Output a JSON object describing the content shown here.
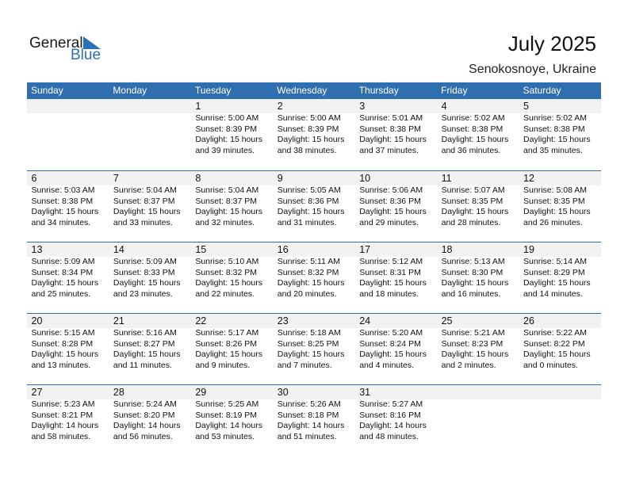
{
  "logo": {
    "general": "General",
    "blue": "Blue"
  },
  "title": "July 2025",
  "location": "Senokosnoye, Ukraine",
  "colors": {
    "header": "#2f6fb0",
    "date_band": "#f2f2f2",
    "brand_blue": "#2b71b8"
  },
  "weekdays": [
    "Sunday",
    "Monday",
    "Tuesday",
    "Wednesday",
    "Thursday",
    "Friday",
    "Saturday"
  ],
  "weeks": [
    [
      null,
      null,
      {
        "day": "1",
        "sunrise": "Sunrise: 5:00 AM",
        "sunset": "Sunset: 8:39 PM",
        "daylight": "Daylight: 15 hours",
        "minutes": "and 39 minutes."
      },
      {
        "day": "2",
        "sunrise": "Sunrise: 5:00 AM",
        "sunset": "Sunset: 8:39 PM",
        "daylight": "Daylight: 15 hours",
        "minutes": "and 38 minutes."
      },
      {
        "day": "3",
        "sunrise": "Sunrise: 5:01 AM",
        "sunset": "Sunset: 8:38 PM",
        "daylight": "Daylight: 15 hours",
        "minutes": "and 37 minutes."
      },
      {
        "day": "4",
        "sunrise": "Sunrise: 5:02 AM",
        "sunset": "Sunset: 8:38 PM",
        "daylight": "Daylight: 15 hours",
        "minutes": "and 36 minutes."
      },
      {
        "day": "5",
        "sunrise": "Sunrise: 5:02 AM",
        "sunset": "Sunset: 8:38 PM",
        "daylight": "Daylight: 15 hours",
        "minutes": "and 35 minutes."
      }
    ],
    [
      {
        "day": "6",
        "sunrise": "Sunrise: 5:03 AM",
        "sunset": "Sunset: 8:38 PM",
        "daylight": "Daylight: 15 hours",
        "minutes": "and 34 minutes."
      },
      {
        "day": "7",
        "sunrise": "Sunrise: 5:04 AM",
        "sunset": "Sunset: 8:37 PM",
        "daylight": "Daylight: 15 hours",
        "minutes": "and 33 minutes."
      },
      {
        "day": "8",
        "sunrise": "Sunrise: 5:04 AM",
        "sunset": "Sunset: 8:37 PM",
        "daylight": "Daylight: 15 hours",
        "minutes": "and 32 minutes."
      },
      {
        "day": "9",
        "sunrise": "Sunrise: 5:05 AM",
        "sunset": "Sunset: 8:36 PM",
        "daylight": "Daylight: 15 hours",
        "minutes": "and 31 minutes."
      },
      {
        "day": "10",
        "sunrise": "Sunrise: 5:06 AM",
        "sunset": "Sunset: 8:36 PM",
        "daylight": "Daylight: 15 hours",
        "minutes": "and 29 minutes."
      },
      {
        "day": "11",
        "sunrise": "Sunrise: 5:07 AM",
        "sunset": "Sunset: 8:35 PM",
        "daylight": "Daylight: 15 hours",
        "minutes": "and 28 minutes."
      },
      {
        "day": "12",
        "sunrise": "Sunrise: 5:08 AM",
        "sunset": "Sunset: 8:35 PM",
        "daylight": "Daylight: 15 hours",
        "minutes": "and 26 minutes."
      }
    ],
    [
      {
        "day": "13",
        "sunrise": "Sunrise: 5:09 AM",
        "sunset": "Sunset: 8:34 PM",
        "daylight": "Daylight: 15 hours",
        "minutes": "and 25 minutes."
      },
      {
        "day": "14",
        "sunrise": "Sunrise: 5:09 AM",
        "sunset": "Sunset: 8:33 PM",
        "daylight": "Daylight: 15 hours",
        "minutes": "and 23 minutes."
      },
      {
        "day": "15",
        "sunrise": "Sunrise: 5:10 AM",
        "sunset": "Sunset: 8:32 PM",
        "daylight": "Daylight: 15 hours",
        "minutes": "and 22 minutes."
      },
      {
        "day": "16",
        "sunrise": "Sunrise: 5:11 AM",
        "sunset": "Sunset: 8:32 PM",
        "daylight": "Daylight: 15 hours",
        "minutes": "and 20 minutes."
      },
      {
        "day": "17",
        "sunrise": "Sunrise: 5:12 AM",
        "sunset": "Sunset: 8:31 PM",
        "daylight": "Daylight: 15 hours",
        "minutes": "and 18 minutes."
      },
      {
        "day": "18",
        "sunrise": "Sunrise: 5:13 AM",
        "sunset": "Sunset: 8:30 PM",
        "daylight": "Daylight: 15 hours",
        "minutes": "and 16 minutes."
      },
      {
        "day": "19",
        "sunrise": "Sunrise: 5:14 AM",
        "sunset": "Sunset: 8:29 PM",
        "daylight": "Daylight: 15 hours",
        "minutes": "and 14 minutes."
      }
    ],
    [
      {
        "day": "20",
        "sunrise": "Sunrise: 5:15 AM",
        "sunset": "Sunset: 8:28 PM",
        "daylight": "Daylight: 15 hours",
        "minutes": "and 13 minutes."
      },
      {
        "day": "21",
        "sunrise": "Sunrise: 5:16 AM",
        "sunset": "Sunset: 8:27 PM",
        "daylight": "Daylight: 15 hours",
        "minutes": "and 11 minutes."
      },
      {
        "day": "22",
        "sunrise": "Sunrise: 5:17 AM",
        "sunset": "Sunset: 8:26 PM",
        "daylight": "Daylight: 15 hours",
        "minutes": "and 9 minutes."
      },
      {
        "day": "23",
        "sunrise": "Sunrise: 5:18 AM",
        "sunset": "Sunset: 8:25 PM",
        "daylight": "Daylight: 15 hours",
        "minutes": "and 7 minutes."
      },
      {
        "day": "24",
        "sunrise": "Sunrise: 5:20 AM",
        "sunset": "Sunset: 8:24 PM",
        "daylight": "Daylight: 15 hours",
        "minutes": "and 4 minutes."
      },
      {
        "day": "25",
        "sunrise": "Sunrise: 5:21 AM",
        "sunset": "Sunset: 8:23 PM",
        "daylight": "Daylight: 15 hours",
        "minutes": "and 2 minutes."
      },
      {
        "day": "26",
        "sunrise": "Sunrise: 5:22 AM",
        "sunset": "Sunset: 8:22 PM",
        "daylight": "Daylight: 15 hours",
        "minutes": "and 0 minutes."
      }
    ],
    [
      {
        "day": "27",
        "sunrise": "Sunrise: 5:23 AM",
        "sunset": "Sunset: 8:21 PM",
        "daylight": "Daylight: 14 hours",
        "minutes": "and 58 minutes."
      },
      {
        "day": "28",
        "sunrise": "Sunrise: 5:24 AM",
        "sunset": "Sunset: 8:20 PM",
        "daylight": "Daylight: 14 hours",
        "minutes": "and 56 minutes."
      },
      {
        "day": "29",
        "sunrise": "Sunrise: 5:25 AM",
        "sunset": "Sunset: 8:19 PM",
        "daylight": "Daylight: 14 hours",
        "minutes": "and 53 minutes."
      },
      {
        "day": "30",
        "sunrise": "Sunrise: 5:26 AM",
        "sunset": "Sunset: 8:18 PM",
        "daylight": "Daylight: 14 hours",
        "minutes": "and 51 minutes."
      },
      {
        "day": "31",
        "sunrise": "Sunrise: 5:27 AM",
        "sunset": "Sunset: 8:16 PM",
        "daylight": "Daylight: 14 hours",
        "minutes": "and 48 minutes."
      },
      null,
      null
    ]
  ]
}
